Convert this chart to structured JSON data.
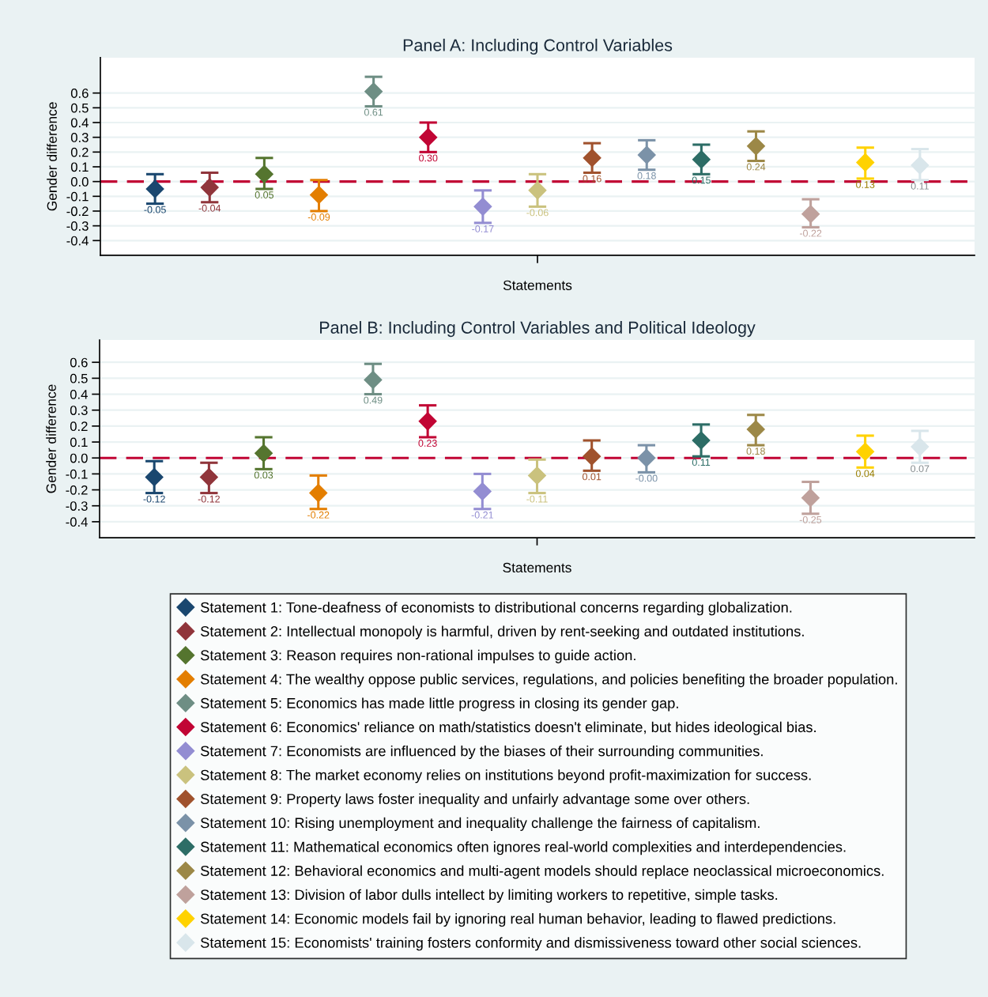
{
  "chart_data": [
    {
      "type": "scatter",
      "title": "Panel A: Including Control Variables",
      "xlabel": "Statements",
      "ylabel": "Gender difference",
      "categories": [
        null,
        null,
        null,
        null,
        null,
        null,
        null,
        null,
        null,
        null,
        null,
        null,
        null,
        null,
        null
      ],
      "ylim": [
        -0.5,
        0.84
      ],
      "yticks": [
        -0.4,
        -0.3,
        -0.2,
        -0.1,
        {
          "value": 0,
          "label": "0.0"
        },
        0.1,
        0.2,
        0.3,
        0.4,
        0.5,
        0.6
      ],
      "grid": "y",
      "marker": "diamond",
      "legend": false,
      "ref_lines": [
        {
          "axis": "y",
          "value": 0,
          "color": "#c10534",
          "line_style": "dashed"
        }
      ],
      "series": [
        {
          "color": "#1a476f",
          "values": [
            -0.05,
            null,
            null,
            null,
            null,
            null,
            null,
            null,
            null,
            null,
            null,
            null,
            null,
            null,
            null
          ],
          "errors": [
            [
              -0.15,
              0.05
            ],
            null,
            null,
            null,
            null,
            null,
            null,
            null,
            null,
            null,
            null,
            null,
            null,
            null,
            null
          ],
          "value_labels": [
            "-0.05",
            null,
            null,
            null,
            null,
            null,
            null,
            null,
            null,
            null,
            null,
            null,
            null,
            null,
            null
          ]
        },
        {
          "color": "#90353b",
          "values": [
            null,
            -0.04,
            null,
            null,
            null,
            null,
            null,
            null,
            null,
            null,
            null,
            null,
            null,
            null,
            null
          ],
          "errors": [
            null,
            [
              -0.14,
              0.06
            ],
            null,
            null,
            null,
            null,
            null,
            null,
            null,
            null,
            null,
            null,
            null,
            null,
            null
          ],
          "value_labels": [
            null,
            "-0.04",
            null,
            null,
            null,
            null,
            null,
            null,
            null,
            null,
            null,
            null,
            null,
            null,
            null
          ]
        },
        {
          "color": "#55752f",
          "values": [
            null,
            null,
            0.05,
            null,
            null,
            null,
            null,
            null,
            null,
            null,
            null,
            null,
            null,
            null,
            null
          ],
          "errors": [
            null,
            null,
            [
              -0.05,
              0.16
            ],
            null,
            null,
            null,
            null,
            null,
            null,
            null,
            null,
            null,
            null,
            null,
            null
          ],
          "value_labels": [
            null,
            null,
            "0.05",
            null,
            null,
            null,
            null,
            null,
            null,
            null,
            null,
            null,
            null,
            null,
            null
          ]
        },
        {
          "color": "#e37e00",
          "values": [
            null,
            null,
            null,
            -0.09,
            null,
            null,
            null,
            null,
            null,
            null,
            null,
            null,
            null,
            null,
            null
          ],
          "errors": [
            null,
            null,
            null,
            [
              -0.2,
              0.01
            ],
            null,
            null,
            null,
            null,
            null,
            null,
            null,
            null,
            null,
            null,
            null
          ],
          "value_labels": [
            null,
            null,
            null,
            "-0.09",
            null,
            null,
            null,
            null,
            null,
            null,
            null,
            null,
            null,
            null,
            null
          ]
        },
        {
          "color": "#6e8e84",
          "values": [
            null,
            null,
            null,
            null,
            0.61,
            null,
            null,
            null,
            null,
            null,
            null,
            null,
            null,
            null,
            null
          ],
          "errors": [
            null,
            null,
            null,
            null,
            [
              0.51,
              0.71
            ],
            null,
            null,
            null,
            null,
            null,
            null,
            null,
            null,
            null,
            null
          ],
          "value_labels": [
            null,
            null,
            null,
            null,
            "0.61",
            null,
            null,
            null,
            null,
            null,
            null,
            null,
            null,
            null,
            null
          ]
        },
        {
          "color": "#c10534",
          "values": [
            null,
            null,
            null,
            null,
            null,
            0.3,
            null,
            null,
            null,
            null,
            null,
            null,
            null,
            null,
            null
          ],
          "errors": [
            null,
            null,
            null,
            null,
            null,
            [
              0.2,
              0.4
            ],
            null,
            null,
            null,
            null,
            null,
            null,
            null,
            null,
            null
          ],
          "value_labels": [
            null,
            null,
            null,
            null,
            null,
            "0.30",
            null,
            null,
            null,
            null,
            null,
            null,
            null,
            null,
            null
          ]
        },
        {
          "color": "#938dd2",
          "values": [
            null,
            null,
            null,
            null,
            null,
            null,
            -0.17,
            null,
            null,
            null,
            null,
            null,
            null,
            null,
            null
          ],
          "errors": [
            null,
            null,
            null,
            null,
            null,
            null,
            [
              -0.28,
              -0.06
            ],
            null,
            null,
            null,
            null,
            null,
            null,
            null,
            null
          ],
          "value_labels": [
            null,
            null,
            null,
            null,
            null,
            null,
            "-0.17",
            null,
            null,
            null,
            null,
            null,
            null,
            null,
            null
          ]
        },
        {
          "color": "#cac27e",
          "values": [
            null,
            null,
            null,
            null,
            null,
            null,
            null,
            -0.06,
            null,
            null,
            null,
            null,
            null,
            null,
            null
          ],
          "errors": [
            null,
            null,
            null,
            null,
            null,
            null,
            null,
            [
              -0.17,
              0.05
            ],
            null,
            null,
            null,
            null,
            null,
            null,
            null
          ],
          "value_labels": [
            null,
            null,
            null,
            null,
            null,
            null,
            null,
            "-0.06",
            null,
            null,
            null,
            null,
            null,
            null,
            null
          ]
        },
        {
          "color": "#a0522d",
          "values": [
            null,
            null,
            null,
            null,
            null,
            null,
            null,
            null,
            0.16,
            null,
            null,
            null,
            null,
            null,
            null
          ],
          "errors": [
            null,
            null,
            null,
            null,
            null,
            null,
            null,
            null,
            [
              0.06,
              0.26
            ],
            null,
            null,
            null,
            null,
            null,
            null
          ],
          "value_labels": [
            null,
            null,
            null,
            null,
            null,
            null,
            null,
            null,
            "0.16",
            null,
            null,
            null,
            null,
            null,
            null
          ]
        },
        {
          "color": "#7b92a8",
          "values": [
            null,
            null,
            null,
            null,
            null,
            null,
            null,
            null,
            null,
            0.18,
            null,
            null,
            null,
            null,
            null
          ],
          "errors": [
            null,
            null,
            null,
            null,
            null,
            null,
            null,
            null,
            null,
            [
              0.08,
              0.28
            ],
            null,
            null,
            null,
            null,
            null
          ],
          "value_labels": [
            null,
            null,
            null,
            null,
            null,
            null,
            null,
            null,
            null,
            "0.18",
            null,
            null,
            null,
            null,
            null
          ]
        },
        {
          "color": "#2d6d66",
          "values": [
            null,
            null,
            null,
            null,
            null,
            null,
            null,
            null,
            null,
            null,
            0.15,
            null,
            null,
            null,
            null
          ],
          "errors": [
            null,
            null,
            null,
            null,
            null,
            null,
            null,
            null,
            null,
            null,
            [
              0.05,
              0.25
            ],
            null,
            null,
            null,
            null
          ],
          "value_labels": [
            null,
            null,
            null,
            null,
            null,
            null,
            null,
            null,
            null,
            null,
            "0.15",
            null,
            null,
            null,
            null
          ]
        },
        {
          "color": "#9c8847",
          "values": [
            null,
            null,
            null,
            null,
            null,
            null,
            null,
            null,
            null,
            null,
            null,
            0.24,
            null,
            null,
            null
          ],
          "errors": [
            null,
            null,
            null,
            null,
            null,
            null,
            null,
            null,
            null,
            null,
            null,
            [
              0.14,
              0.34
            ],
            null,
            null,
            null
          ],
          "value_labels": [
            null,
            null,
            null,
            null,
            null,
            null,
            null,
            null,
            null,
            null,
            null,
            "0.24",
            null,
            null,
            null
          ]
        },
        {
          "color": "#bfa19c",
          "values": [
            null,
            null,
            null,
            null,
            null,
            null,
            null,
            null,
            null,
            null,
            null,
            null,
            -0.22,
            null,
            null
          ],
          "errors": [
            null,
            null,
            null,
            null,
            null,
            null,
            null,
            null,
            null,
            null,
            null,
            null,
            [
              -0.31,
              -0.12
            ],
            null,
            null
          ],
          "value_labels": [
            null,
            null,
            null,
            null,
            null,
            null,
            null,
            null,
            null,
            null,
            null,
            null,
            "-0.22",
            null,
            null
          ]
        },
        {
          "color": "#ffd200",
          "values": [
            null,
            null,
            null,
            null,
            null,
            null,
            null,
            null,
            null,
            null,
            null,
            null,
            null,
            0.13,
            null
          ],
          "errors": [
            null,
            null,
            null,
            null,
            null,
            null,
            null,
            null,
            null,
            null,
            null,
            null,
            null,
            [
              0.02,
              0.23
            ],
            null
          ],
          "value_labels": [
            null,
            null,
            null,
            null,
            null,
            null,
            null,
            null,
            null,
            null,
            null,
            null,
            null,
            "0.13",
            null
          ]
        },
        {
          "color": "#d9e6eb",
          "values": [
            null,
            null,
            null,
            null,
            null,
            null,
            null,
            null,
            null,
            null,
            null,
            null,
            null,
            null,
            0.11
          ],
          "errors": [
            null,
            null,
            null,
            null,
            null,
            null,
            null,
            null,
            null,
            null,
            null,
            null,
            null,
            null,
            [
              0.01,
              0.22
            ]
          ],
          "value_labels": [
            null,
            null,
            null,
            null,
            null,
            null,
            null,
            null,
            null,
            null,
            null,
            null,
            null,
            null,
            "0.11"
          ]
        }
      ]
    },
    {
      "type": "scatter",
      "title": "Panel B: Including Control Variables and Political Ideology",
      "xlabel": "Statements",
      "ylabel": "Gender difference",
      "categories": [
        null,
        null,
        null,
        null,
        null,
        null,
        null,
        null,
        null,
        null,
        null,
        null,
        null,
        null,
        null
      ],
      "ylim": [
        -0.5,
        0.74
      ],
      "yticks": [
        -0.4,
        -0.3,
        -0.2,
        -0.1,
        {
          "value": 0,
          "label": "0.0"
        },
        0.1,
        0.2,
        0.3,
        0.4,
        0.5,
        0.6
      ],
      "grid": "y",
      "marker": "diamond",
      "legend": "bottom",
      "ref_lines": [
        {
          "axis": "y",
          "value": 0,
          "color": "#c10534",
          "line_style": "dashed"
        }
      ],
      "series": [
        {
          "name": "Statement 1: Tone-deafness of economists to distributional concerns regarding globalization.",
          "color": "#1a476f",
          "values": [
            -0.12,
            null,
            null,
            null,
            null,
            null,
            null,
            null,
            null,
            null,
            null,
            null,
            null,
            null,
            null
          ],
          "errors": [
            [
              -0.22,
              -0.02
            ],
            null,
            null,
            null,
            null,
            null,
            null,
            null,
            null,
            null,
            null,
            null,
            null,
            null,
            null
          ],
          "value_labels": [
            "-0.12",
            null,
            null,
            null,
            null,
            null,
            null,
            null,
            null,
            null,
            null,
            null,
            null,
            null,
            null
          ]
        },
        {
          "name": "Statement 2: Intellectual monopoly is harmful, driven by rent-seeking and outdated institutions.",
          "color": "#90353b",
          "values": [
            null,
            -0.12,
            null,
            null,
            null,
            null,
            null,
            null,
            null,
            null,
            null,
            null,
            null,
            null,
            null
          ],
          "errors": [
            null,
            [
              -0.22,
              -0.03
            ],
            null,
            null,
            null,
            null,
            null,
            null,
            null,
            null,
            null,
            null,
            null,
            null,
            null
          ],
          "value_labels": [
            null,
            "-0.12",
            null,
            null,
            null,
            null,
            null,
            null,
            null,
            null,
            null,
            null,
            null,
            null,
            null
          ]
        },
        {
          "name": "Statement 3: Reason requires non-rational impulses to guide action.",
          "color": "#55752f",
          "values": [
            null,
            null,
            0.03,
            null,
            null,
            null,
            null,
            null,
            null,
            null,
            null,
            null,
            null,
            null,
            null
          ],
          "errors": [
            null,
            null,
            [
              -0.07,
              0.13
            ],
            null,
            null,
            null,
            null,
            null,
            null,
            null,
            null,
            null,
            null,
            null,
            null
          ],
          "value_labels": [
            null,
            null,
            "0.03",
            null,
            null,
            null,
            null,
            null,
            null,
            null,
            null,
            null,
            null,
            null,
            null
          ]
        },
        {
          "name": "Statement 4: The wealthy oppose public services, regulations, and policies benefiting the broader population.",
          "color": "#e37e00",
          "values": [
            null,
            null,
            null,
            -0.22,
            null,
            null,
            null,
            null,
            null,
            null,
            null,
            null,
            null,
            null,
            null
          ],
          "errors": [
            null,
            null,
            null,
            [
              -0.32,
              -0.11
            ],
            null,
            null,
            null,
            null,
            null,
            null,
            null,
            null,
            null,
            null,
            null
          ],
          "value_labels": [
            null,
            null,
            null,
            "-0.22",
            null,
            null,
            null,
            null,
            null,
            null,
            null,
            null,
            null,
            null,
            null
          ]
        },
        {
          "name": "Statement 5: Economics has made little progress in closing its gender gap.",
          "color": "#6e8e84",
          "values": [
            null,
            null,
            null,
            null,
            0.49,
            null,
            null,
            null,
            null,
            null,
            null,
            null,
            null,
            null,
            null
          ],
          "errors": [
            null,
            null,
            null,
            null,
            [
              0.4,
              0.59
            ],
            null,
            null,
            null,
            null,
            null,
            null,
            null,
            null,
            null,
            null
          ],
          "value_labels": [
            null,
            null,
            null,
            null,
            "0.49",
            null,
            null,
            null,
            null,
            null,
            null,
            null,
            null,
            null,
            null
          ]
        },
        {
          "name": "Statement 6: Economics' reliance on math/statistics doesn't eliminate, but hides ideological bias.",
          "color": "#c10534",
          "values": [
            null,
            null,
            null,
            null,
            null,
            0.23,
            null,
            null,
            null,
            null,
            null,
            null,
            null,
            null,
            null
          ],
          "errors": [
            null,
            null,
            null,
            null,
            null,
            [
              0.13,
              0.33
            ],
            null,
            null,
            null,
            null,
            null,
            null,
            null,
            null,
            null
          ],
          "value_labels": [
            null,
            null,
            null,
            null,
            null,
            "0.23",
            null,
            null,
            null,
            null,
            null,
            null,
            null,
            null,
            null
          ]
        },
        {
          "name": "Statement 7: Economists are influenced by the biases of their surrounding communities.",
          "color": "#938dd2",
          "values": [
            null,
            null,
            null,
            null,
            null,
            null,
            -0.21,
            null,
            null,
            null,
            null,
            null,
            null,
            null,
            null
          ],
          "errors": [
            null,
            null,
            null,
            null,
            null,
            null,
            [
              -0.32,
              -0.1
            ],
            null,
            null,
            null,
            null,
            null,
            null,
            null,
            null
          ],
          "value_labels": [
            null,
            null,
            null,
            null,
            null,
            null,
            "-0.21",
            null,
            null,
            null,
            null,
            null,
            null,
            null,
            null
          ]
        },
        {
          "name": "Statement 8: The market economy relies on institutions beyond profit-maximization for success.",
          "color": "#cac27e",
          "values": [
            null,
            null,
            null,
            null,
            null,
            null,
            null,
            -0.11,
            null,
            null,
            null,
            null,
            null,
            null,
            null
          ],
          "errors": [
            null,
            null,
            null,
            null,
            null,
            null,
            null,
            [
              -0.22,
              -0.01
            ],
            null,
            null,
            null,
            null,
            null,
            null,
            null
          ],
          "value_labels": [
            null,
            null,
            null,
            null,
            null,
            null,
            null,
            "-0.11",
            null,
            null,
            null,
            null,
            null,
            null,
            null
          ]
        },
        {
          "name": "Statement 9: Property laws foster inequality and unfairly advantage some over others.",
          "color": "#a0522d",
          "values": [
            null,
            null,
            null,
            null,
            null,
            null,
            null,
            null,
            0.01,
            null,
            null,
            null,
            null,
            null,
            null
          ],
          "errors": [
            null,
            null,
            null,
            null,
            null,
            null,
            null,
            null,
            [
              -0.08,
              0.11
            ],
            null,
            null,
            null,
            null,
            null,
            null
          ],
          "value_labels": [
            null,
            null,
            null,
            null,
            null,
            null,
            null,
            null,
            "0.01",
            null,
            null,
            null,
            null,
            null,
            null
          ]
        },
        {
          "name": "Statement 10: Rising unemployment and inequality challenge the fairness of capitalism.",
          "color": "#7b92a8",
          "values": [
            null,
            null,
            null,
            null,
            null,
            null,
            null,
            null,
            null,
            -0.0,
            null,
            null,
            null,
            null,
            null
          ],
          "errors": [
            null,
            null,
            null,
            null,
            null,
            null,
            null,
            null,
            null,
            [
              -0.09,
              0.08
            ],
            null,
            null,
            null,
            null,
            null
          ],
          "value_labels": [
            null,
            null,
            null,
            null,
            null,
            null,
            null,
            null,
            null,
            "-0.00",
            null,
            null,
            null,
            null,
            null
          ]
        },
        {
          "name": "Statement 11: Mathematical economics often ignores real-world complexities and interdependencies.",
          "color": "#2d6d66",
          "values": [
            null,
            null,
            null,
            null,
            null,
            null,
            null,
            null,
            null,
            null,
            0.11,
            null,
            null,
            null,
            null
          ],
          "errors": [
            null,
            null,
            null,
            null,
            null,
            null,
            null,
            null,
            null,
            null,
            [
              0.01,
              0.21
            ],
            null,
            null,
            null,
            null
          ],
          "value_labels": [
            null,
            null,
            null,
            null,
            null,
            null,
            null,
            null,
            null,
            null,
            "0.11",
            null,
            null,
            null,
            null
          ]
        },
        {
          "name": "Statement 12: Behavioral economics and multi-agent models should replace neoclassical microeconomics.",
          "color": "#9c8847",
          "values": [
            null,
            null,
            null,
            null,
            null,
            null,
            null,
            null,
            null,
            null,
            null,
            0.18,
            null,
            null,
            null
          ],
          "errors": [
            null,
            null,
            null,
            null,
            null,
            null,
            null,
            null,
            null,
            null,
            null,
            [
              0.08,
              0.27
            ],
            null,
            null,
            null
          ],
          "value_labels": [
            null,
            null,
            null,
            null,
            null,
            null,
            null,
            null,
            null,
            null,
            null,
            "0.18",
            null,
            null,
            null
          ]
        },
        {
          "name": "Statement 13: Division of labor dulls intellect by limiting workers to repetitive, simple tasks.",
          "color": "#bfa19c",
          "values": [
            null,
            null,
            null,
            null,
            null,
            null,
            null,
            null,
            null,
            null,
            null,
            null,
            -0.25,
            null,
            null
          ],
          "errors": [
            null,
            null,
            null,
            null,
            null,
            null,
            null,
            null,
            null,
            null,
            null,
            null,
            [
              -0.35,
              -0.15
            ],
            null,
            null
          ],
          "value_labels": [
            null,
            null,
            null,
            null,
            null,
            null,
            null,
            null,
            null,
            null,
            null,
            null,
            "-0.25",
            null,
            null
          ]
        },
        {
          "name": "Statement 14: Economic models fail by ignoring real human behavior, leading to flawed predictions.",
          "color": "#ffd200",
          "values": [
            null,
            null,
            null,
            null,
            null,
            null,
            null,
            null,
            null,
            null,
            null,
            null,
            null,
            0.04,
            null
          ],
          "errors": [
            null,
            null,
            null,
            null,
            null,
            null,
            null,
            null,
            null,
            null,
            null,
            null,
            null,
            [
              -0.06,
              0.14
            ],
            null
          ],
          "value_labels": [
            null,
            null,
            null,
            null,
            null,
            null,
            null,
            null,
            null,
            null,
            null,
            null,
            null,
            "0.04",
            null
          ]
        },
        {
          "name": "Statement 15: Economists' training fosters conformity and dismissiveness toward other social sciences.",
          "color": "#d9e6eb",
          "values": [
            null,
            null,
            null,
            null,
            null,
            null,
            null,
            null,
            null,
            null,
            null,
            null,
            null,
            null,
            0.07
          ],
          "errors": [
            null,
            null,
            null,
            null,
            null,
            null,
            null,
            null,
            null,
            null,
            null,
            null,
            null,
            null,
            [
              -0.03,
              0.17
            ]
          ],
          "value_labels": [
            null,
            null,
            null,
            null,
            null,
            null,
            null,
            null,
            null,
            null,
            null,
            null,
            null,
            null,
            "0.07"
          ]
        }
      ]
    }
  ]
}
